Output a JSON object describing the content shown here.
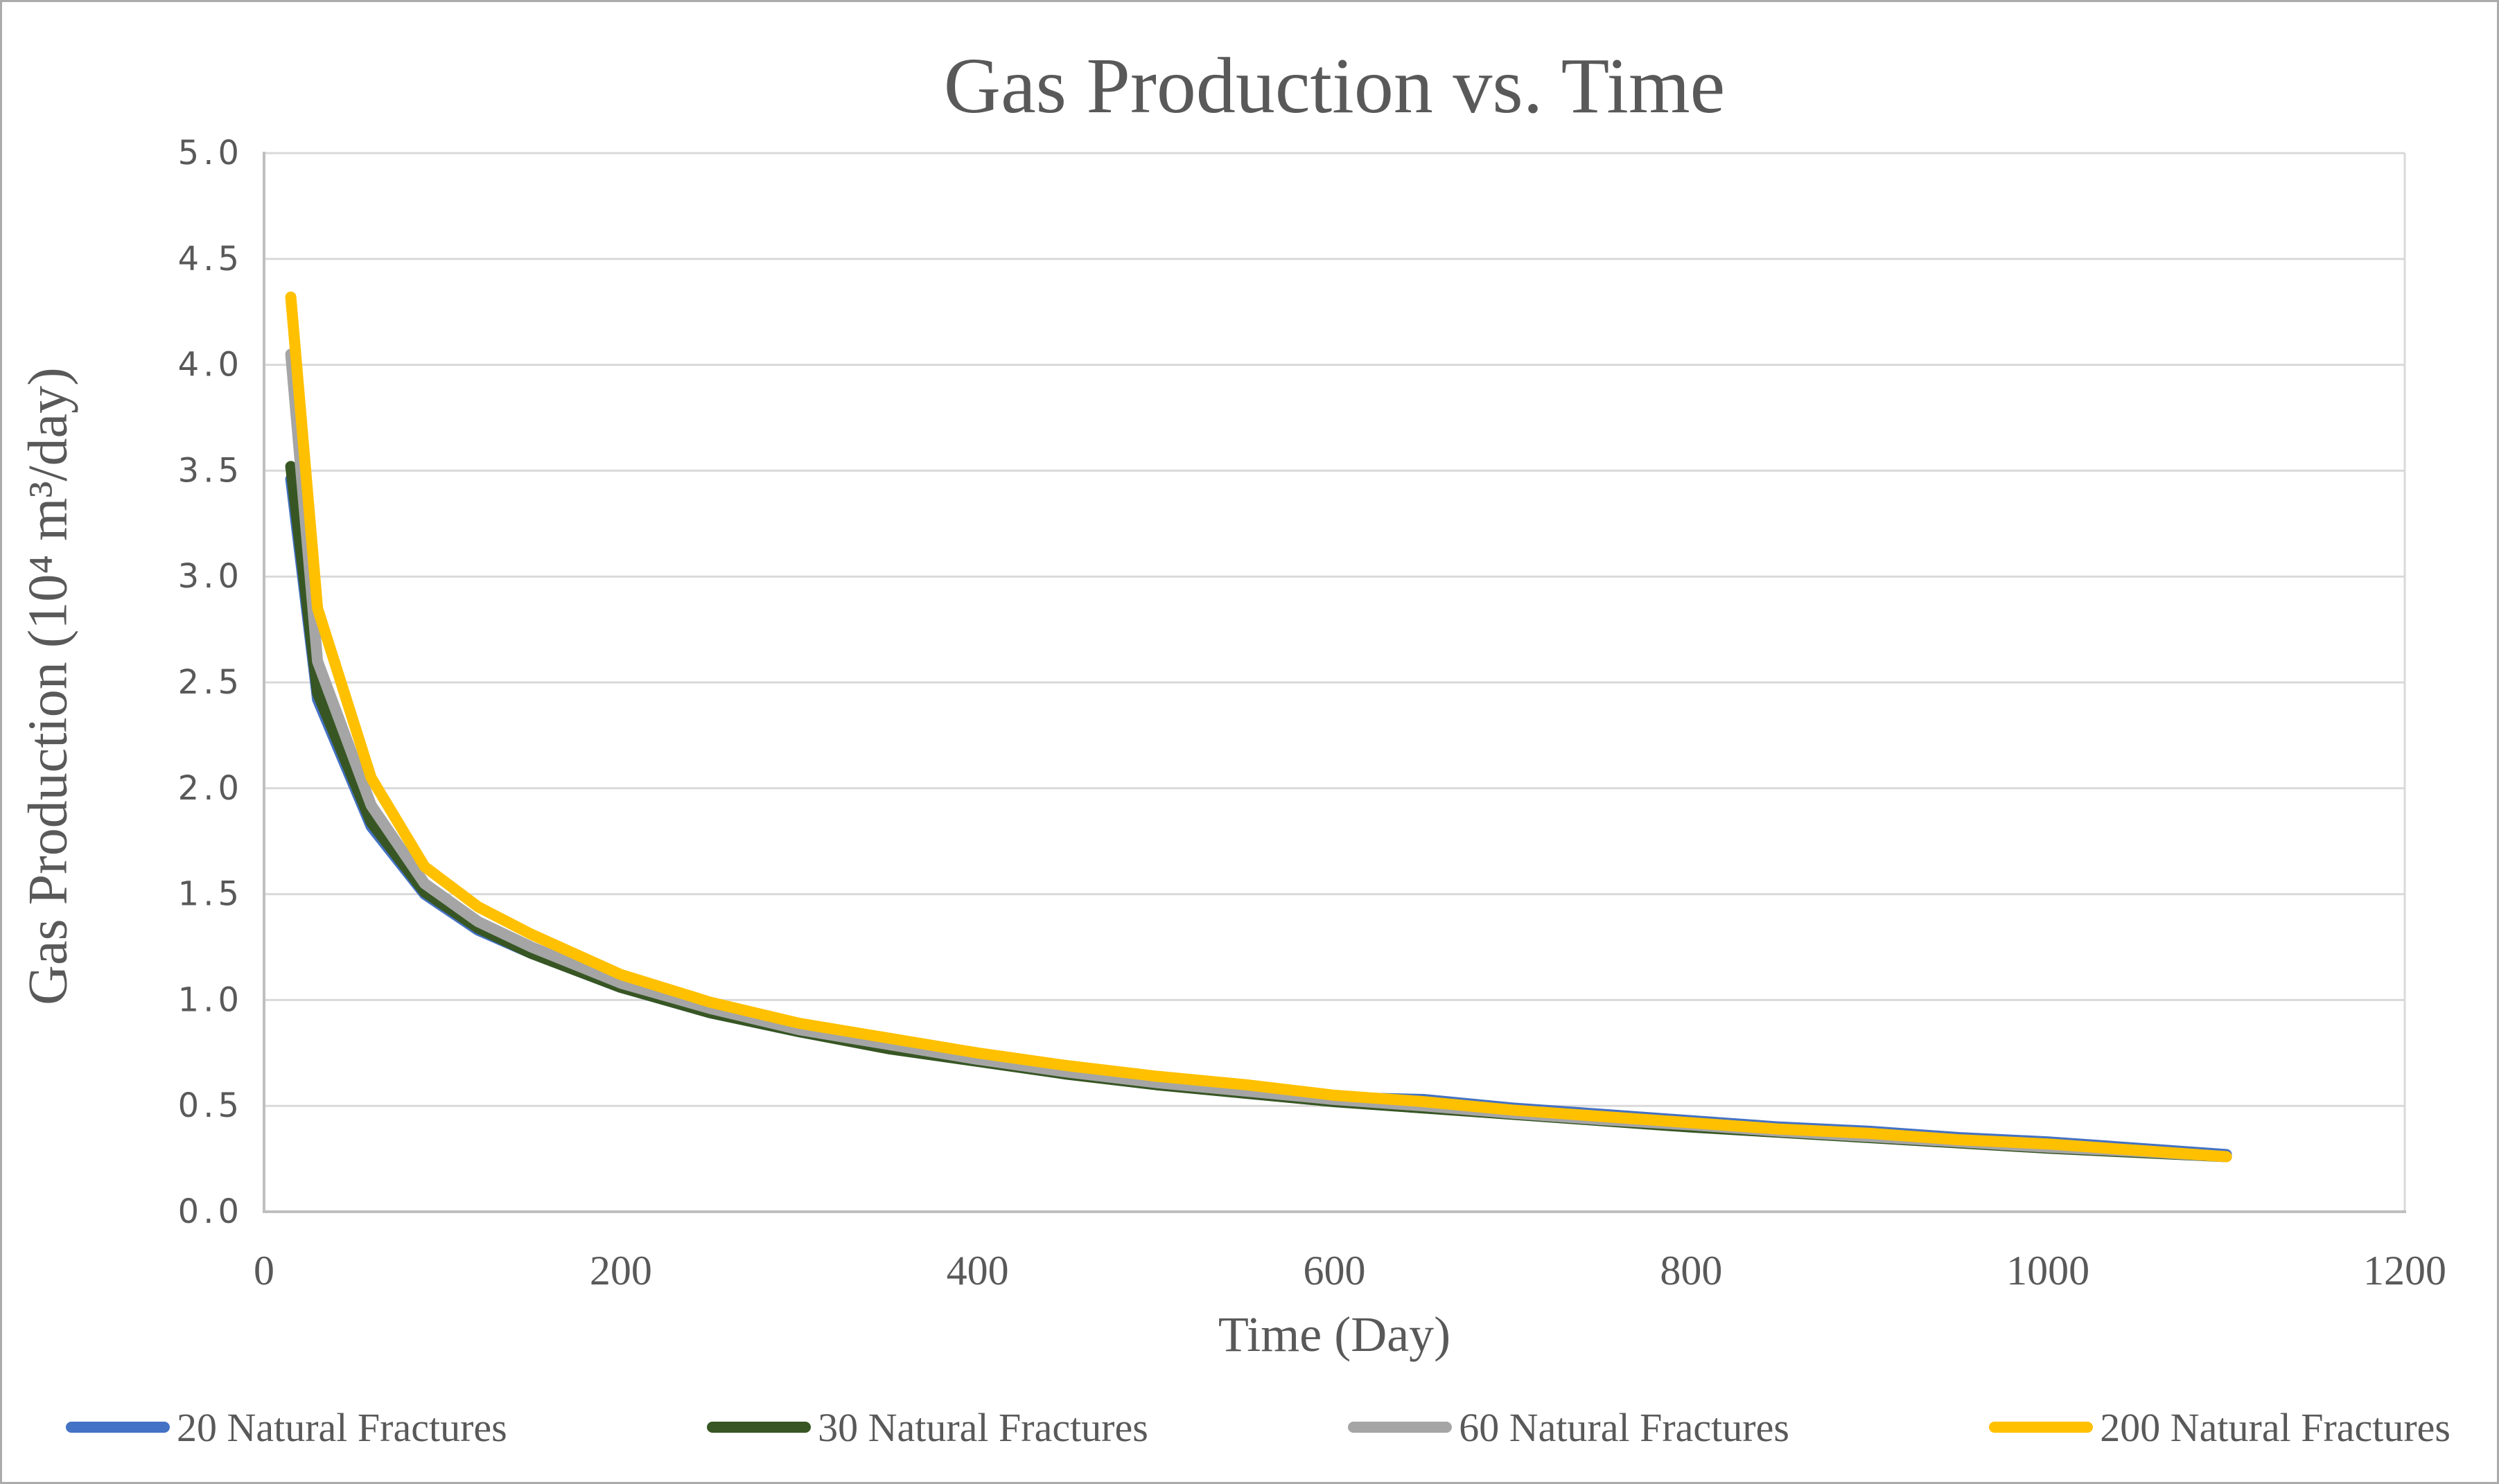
{
  "chart_data": {
    "type": "line",
    "title": "Gas Production vs. Time",
    "xlabel": "Time (Day)",
    "ylabel": "Gas Production (10⁴ m³/day)",
    "xlim": [
      0,
      1200
    ],
    "ylim": [
      0,
      5
    ],
    "x_ticks": [
      "0",
      "200",
      "400",
      "600",
      "800",
      "1000",
      "1200"
    ],
    "y_ticks": [
      "0.0",
      "0.5",
      "1.0",
      "1.5",
      "2.0",
      "2.5",
      "3.0",
      "3.5",
      "4.0",
      "4.5",
      "5.0"
    ],
    "grid": "horizontal gridlines on",
    "legend_position": "bottom",
    "x": [
      15,
      30,
      60,
      90,
      120,
      150,
      200,
      250,
      300,
      350,
      400,
      450,
      500,
      550,
      600,
      650,
      700,
      750,
      800,
      850,
      900,
      950,
      1000,
      1050,
      1100
    ],
    "series": [
      {
        "name": "20 Natural Fractures",
        "color": "#4472C4",
        "values": [
          3.46,
          2.42,
          1.82,
          1.5,
          1.33,
          1.22,
          1.06,
          0.94,
          0.85,
          0.78,
          0.72,
          0.66,
          0.61,
          0.57,
          0.54,
          0.53,
          0.49,
          0.46,
          0.43,
          0.4,
          0.38,
          0.35,
          0.33,
          0.3,
          0.27
        ]
      },
      {
        "name": "30 Natural Fractures",
        "color": "#375623",
        "values": [
          3.52,
          2.45,
          1.84,
          1.51,
          1.34,
          1.22,
          1.06,
          0.94,
          0.85,
          0.77,
          0.71,
          0.65,
          0.6,
          0.56,
          0.52,
          0.49,
          0.46,
          0.43,
          0.4,
          0.375,
          0.35,
          0.325,
          0.3,
          0.28,
          0.26
        ]
      },
      {
        "name": "60 Natural Fractures",
        "color": "#A5A5A5",
        "values": [
          4.05,
          2.6,
          1.92,
          1.55,
          1.37,
          1.25,
          1.08,
          0.96,
          0.86,
          0.79,
          0.72,
          0.66,
          0.61,
          0.57,
          0.53,
          0.5,
          0.465,
          0.435,
          0.41,
          0.38,
          0.355,
          0.33,
          0.305,
          0.285,
          0.26
        ]
      },
      {
        "name": "200 Natural Fractures",
        "color": "#FFC000",
        "values": [
          4.32,
          2.85,
          2.05,
          1.63,
          1.44,
          1.31,
          1.12,
          0.99,
          0.89,
          0.82,
          0.75,
          0.69,
          0.64,
          0.6,
          0.55,
          0.52,
          0.48,
          0.45,
          0.42,
          0.39,
          0.37,
          0.34,
          0.32,
          0.29,
          0.26
        ]
      }
    ],
    "colors": {
      "text": "#595959",
      "gridline": "#D9D9D9",
      "axis_line": "#BFBFBF",
      "figure_border": "#ABABAB",
      "background": "#FFFFFF"
    }
  }
}
